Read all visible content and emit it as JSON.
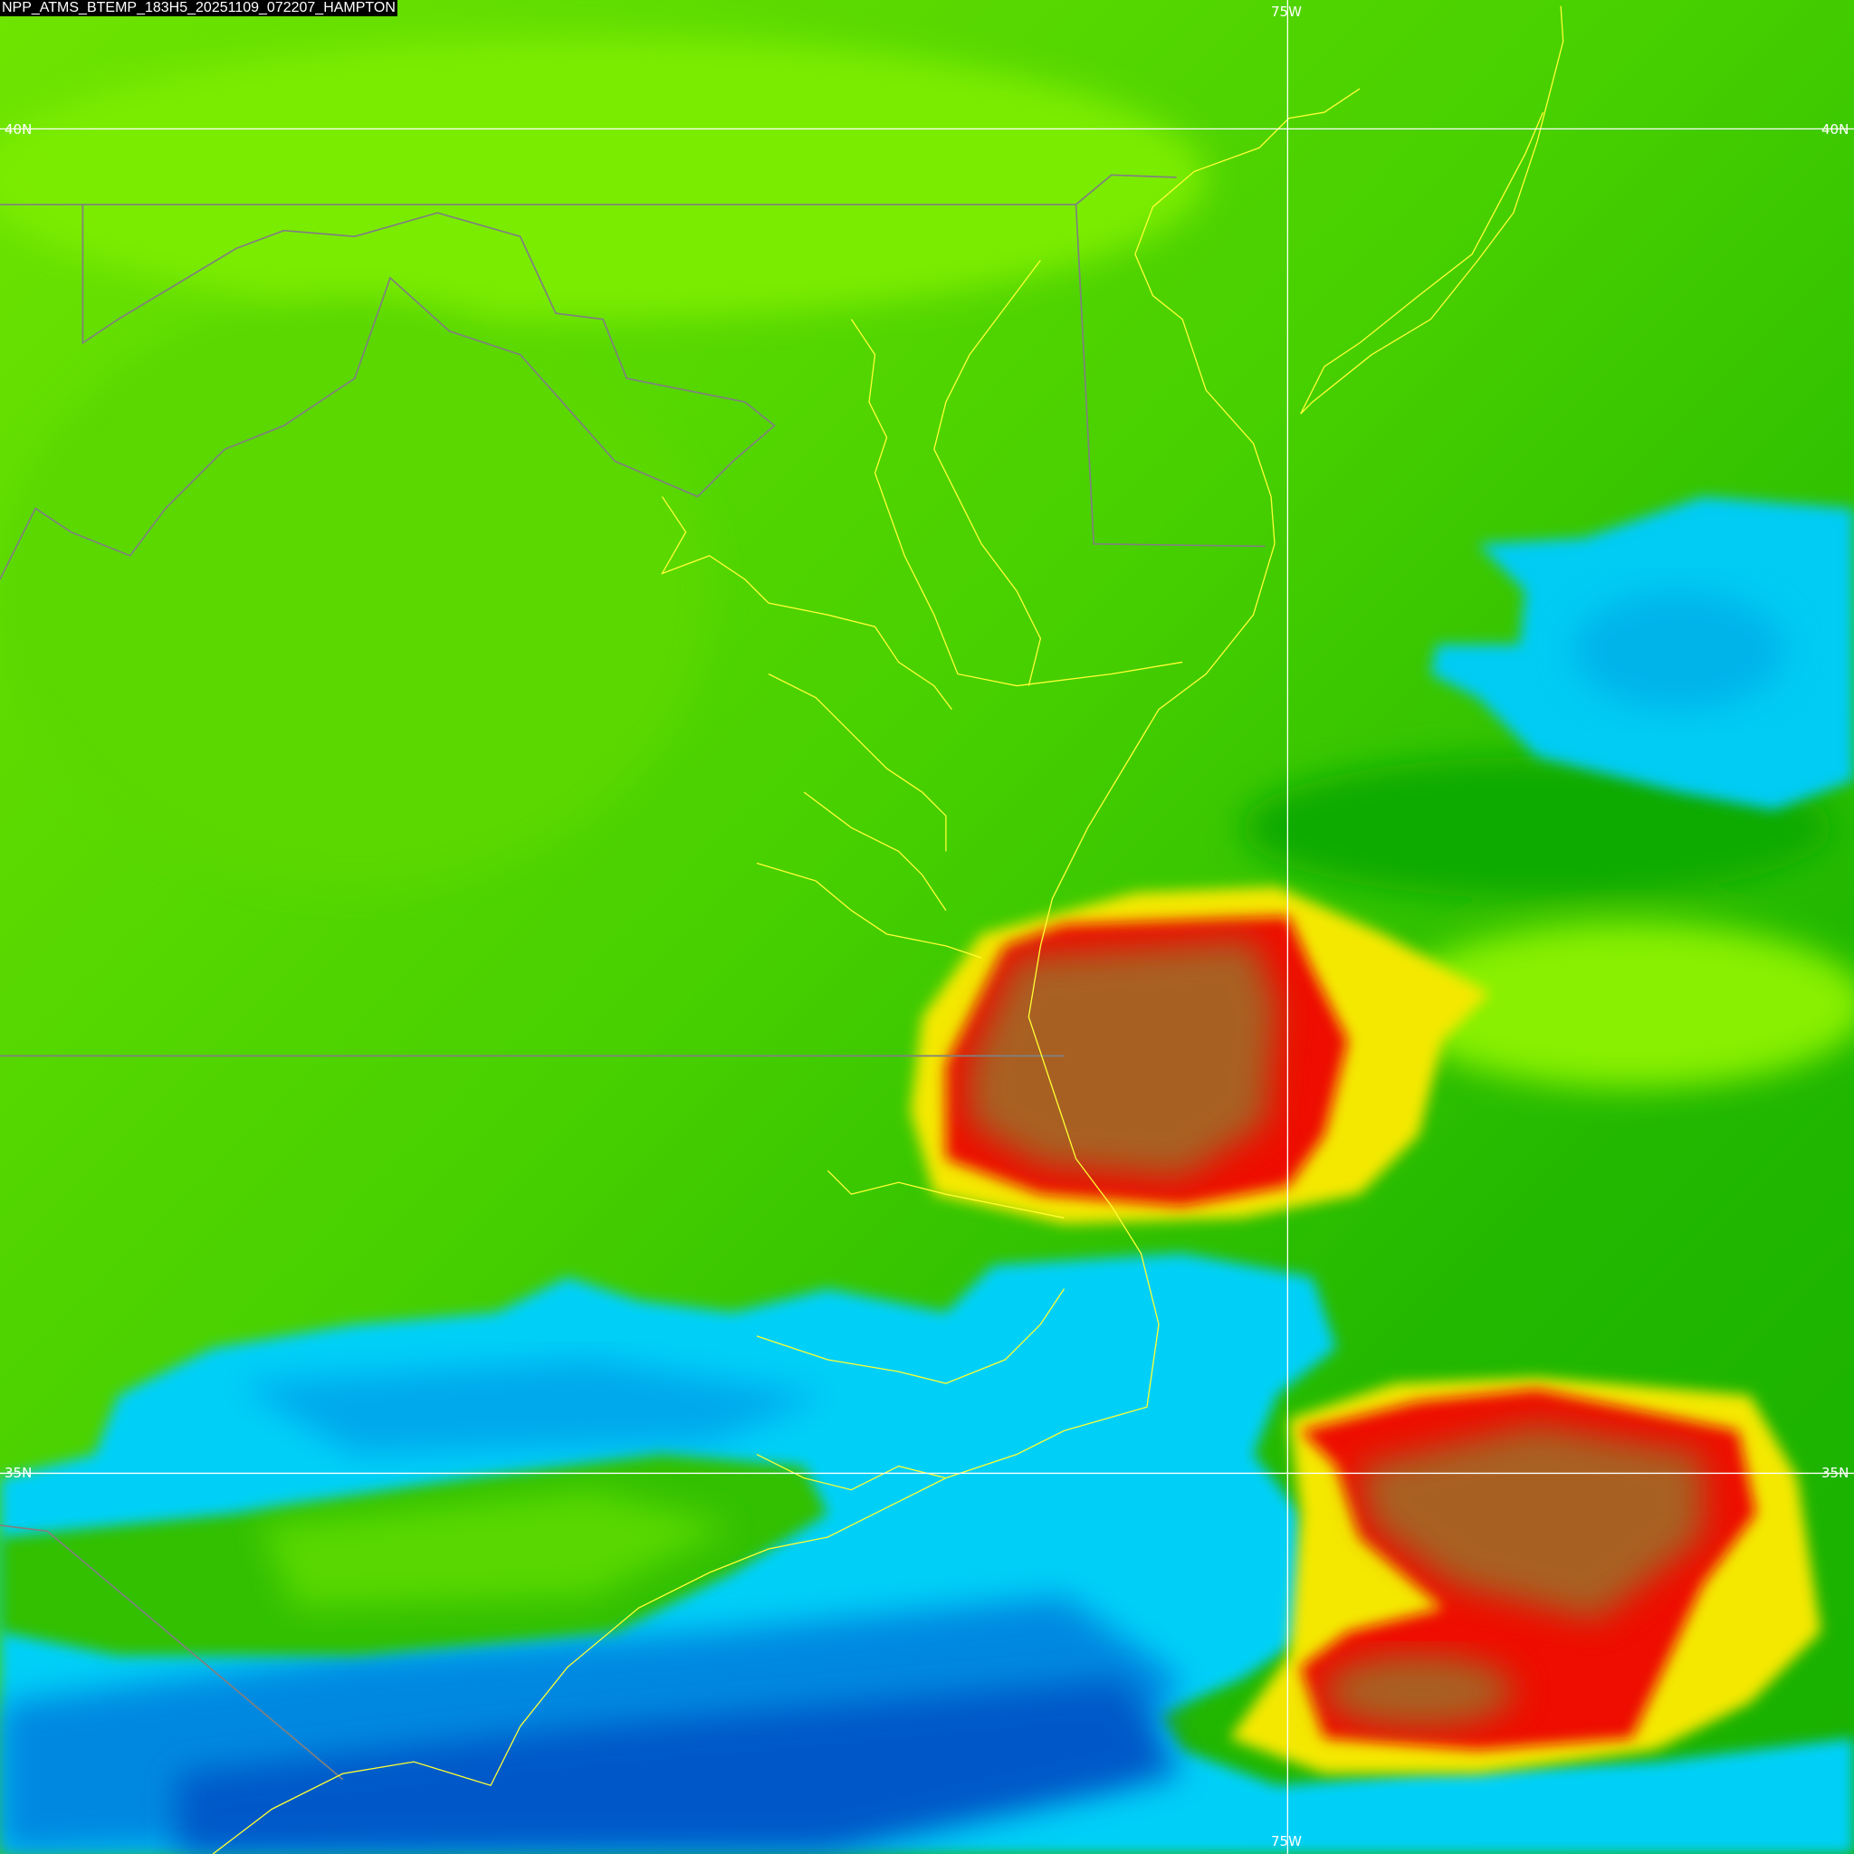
{
  "title": "NPP_ATMS_BTEMP_183H5_20251109_072207_HAMPTON",
  "grid": {
    "lon_label_top": "75W",
    "lon_label_bottom": "75W",
    "lat_40_left": "40N",
    "lat_40_right": "40N",
    "lat_35_left": "35N",
    "lat_35_right": "35N"
  },
  "colors": {
    "grid": "#ffffff",
    "coastline": "#ffff33",
    "state_border": "#808080",
    "palette": [
      "#0044bb",
      "#0090e0",
      "#00d8ff",
      "#10b000",
      "#60e000",
      "#90f000",
      "#f8e800",
      "#ee1000",
      "#a86020"
    ]
  }
}
